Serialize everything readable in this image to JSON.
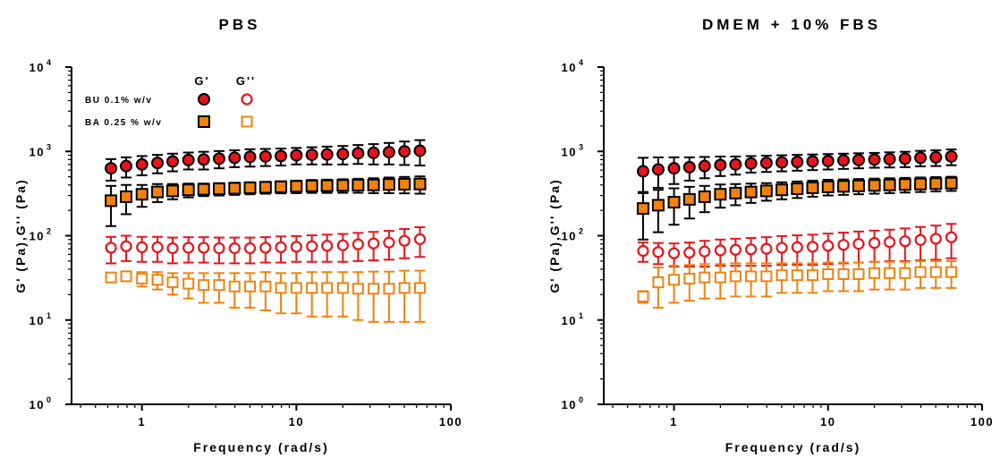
{
  "chart_data": [
    {
      "type": "scatter",
      "title": "PBS",
      "xlabel": "Frequency (rad/s)",
      "ylabel": "G' (Pa),G'' (Pa)",
      "xscale": "log",
      "yscale": "log",
      "xlim": [
        0.35,
        100
      ],
      "ylim": [
        1,
        10000
      ],
      "x_ticks": [
        {
          "base": "1"
        },
        {
          "base": "10"
        },
        {
          "base": "100"
        }
      ],
      "y_ticks": [
        {
          "base": "10",
          "exp": "0"
        },
        {
          "base": "10",
          "exp": "1"
        },
        {
          "base": "10",
          "exp": "2"
        },
        {
          "base": "10",
          "exp": "3"
        },
        {
          "base": "10",
          "exp": "4"
        }
      ],
      "legend": {
        "placement": "top-left",
        "headers": [
          "G'",
          "G''"
        ],
        "rows": [
          "BU 0.1% w/v",
          "BA 0.25 % w/v"
        ]
      },
      "x": [
        0.63,
        0.79,
        1.0,
        1.26,
        1.58,
        2.0,
        2.51,
        3.16,
        3.98,
        5.01,
        6.31,
        7.94,
        10.0,
        12.6,
        15.8,
        20.0,
        25.1,
        31.6,
        39.8,
        50.1,
        63.1
      ],
      "series": [
        {
          "group": "BU 0.1% w/v",
          "modulus": "G'",
          "marker": "circle",
          "filled": true,
          "color": "#e8141c",
          "values": [
            630,
            670,
            700,
            730,
            760,
            790,
            800,
            820,
            840,
            860,
            870,
            880,
            900,
            910,
            920,
            930,
            950,
            960,
            980,
            1000,
            1020
          ],
          "err": [
            180,
            180,
            180,
            180,
            180,
            180,
            190,
            190,
            190,
            200,
            200,
            200,
            200,
            210,
            220,
            230,
            240,
            260,
            280,
            310,
            340
          ]
        },
        {
          "group": "BU 0.1% w/v",
          "modulus": "G''",
          "marker": "circle",
          "filled": false,
          "color": "#e8141c",
          "values": [
            72,
            75,
            73,
            73,
            71,
            72,
            72,
            71,
            71,
            71,
            72,
            73,
            74,
            75,
            76,
            77,
            79,
            81,
            83,
            87,
            91
          ],
          "err": [
            25,
            25,
            24,
            24,
            24,
            24,
            24,
            24,
            24,
            24,
            24,
            25,
            25,
            26,
            27,
            28,
            29,
            30,
            31,
            33,
            35
          ]
        },
        {
          "group": "BA 0.25 % w/v",
          "modulus": "G'",
          "marker": "square",
          "filled": true,
          "color": "#f0820f",
          "values": [
            260,
            290,
            310,
            330,
            340,
            350,
            355,
            360,
            365,
            370,
            375,
            380,
            385,
            390,
            392,
            395,
            398,
            400,
            405,
            408,
            410
          ],
          "err": [
            130,
            110,
            90,
            80,
            70,
            65,
            60,
            60,
            60,
            60,
            60,
            62,
            65,
            68,
            70,
            72,
            75,
            80,
            85,
            90,
            95
          ]
        },
        {
          "group": "BA 0.25 % w/v",
          "modulus": "G''",
          "marker": "square",
          "filled": false,
          "color": "#f0820f",
          "values": [
            32,
            33,
            31,
            30,
            28,
            27,
            26,
            26,
            25,
            25,
            25,
            24,
            24,
            24,
            24,
            24,
            23.5,
            23.5,
            23.5,
            24,
            24
          ],
          "err": [
            4,
            4,
            6,
            7,
            8,
            9,
            10,
            10,
            11,
            11,
            12,
            12,
            12,
            13,
            13,
            13,
            13.5,
            14,
            14,
            14.5,
            14.5
          ]
        }
      ]
    },
    {
      "type": "scatter",
      "title": "DMEM + 10% FBS",
      "xlabel": "Frequency (rad/s)",
      "ylabel": "G' (Pa),G'' (Pa)",
      "xscale": "log",
      "yscale": "log",
      "xlim": [
        0.35,
        100
      ],
      "ylim": [
        1,
        10000
      ],
      "x_ticks": [
        {
          "base": "1"
        },
        {
          "base": "10"
        },
        {
          "base": "100"
        }
      ],
      "y_ticks": [
        {
          "base": "10",
          "exp": "0"
        },
        {
          "base": "10",
          "exp": "1"
        },
        {
          "base": "10",
          "exp": "2"
        },
        {
          "base": "10",
          "exp": "3"
        },
        {
          "base": "10",
          "exp": "4"
        }
      ],
      "x": [
        0.63,
        0.79,
        1.0,
        1.26,
        1.58,
        2.0,
        2.51,
        3.16,
        3.98,
        5.01,
        6.31,
        7.94,
        10.0,
        12.6,
        15.8,
        20.0,
        25.1,
        31.6,
        39.8,
        50.1,
        63.1
      ],
      "series": [
        {
          "group": "BU 0.1% w/v",
          "modulus": "G'",
          "marker": "circle",
          "filled": true,
          "color": "#e8141c",
          "values": [
            580,
            610,
            630,
            650,
            670,
            690,
            700,
            720,
            730,
            740,
            750,
            760,
            770,
            780,
            790,
            800,
            810,
            820,
            840,
            850,
            870
          ],
          "err": [
            260,
            240,
            220,
            200,
            190,
            180,
            170,
            160,
            160,
            160,
            160,
            160,
            160,
            160,
            160,
            160,
            165,
            170,
            175,
            180,
            185
          ]
        },
        {
          "group": "BU 0.1% w/v",
          "modulus": "G''",
          "marker": "circle",
          "filled": false,
          "color": "#e8141c",
          "values": [
            66,
            64,
            62,
            63,
            65,
            67,
            68,
            69,
            70,
            72,
            73,
            74,
            76,
            78,
            80,
            82,
            84,
            86,
            89,
            92,
            96
          ],
          "err": [
            17,
            18,
            19,
            20,
            22,
            23,
            24,
            25,
            26,
            27,
            28,
            29,
            30,
            31,
            32,
            33,
            34,
            36,
            38,
            40,
            42
          ]
        },
        {
          "group": "BA 0.25 % w/v",
          "modulus": "G'",
          "marker": "square",
          "filled": true,
          "color": "#f0820f",
          "values": [
            210,
            230,
            250,
            270,
            290,
            310,
            320,
            330,
            340,
            350,
            360,
            370,
            380,
            385,
            390,
            395,
            400,
            405,
            410,
            415,
            420
          ],
          "err": [
            120,
            120,
            115,
            110,
            100,
            95,
            90,
            85,
            80,
            80,
            80,
            80,
            80,
            80,
            80,
            80,
            80,
            80,
            80,
            80,
            80
          ]
        },
        {
          "group": "BA 0.25 % w/v",
          "modulus": "G''",
          "marker": "square",
          "filled": false,
          "color": "#f0820f",
          "values": [
            19,
            28,
            30,
            31,
            32,
            32,
            33,
            33,
            33,
            34,
            34,
            34,
            35,
            35,
            35,
            36,
            36,
            36,
            37,
            37,
            37
          ],
          "err": [
            3,
            14,
            14,
            14,
            14,
            14,
            14,
            14,
            14,
            13,
            13,
            13,
            13,
            13,
            13,
            13,
            13,
            13,
            13,
            13,
            13
          ]
        }
      ]
    }
  ]
}
